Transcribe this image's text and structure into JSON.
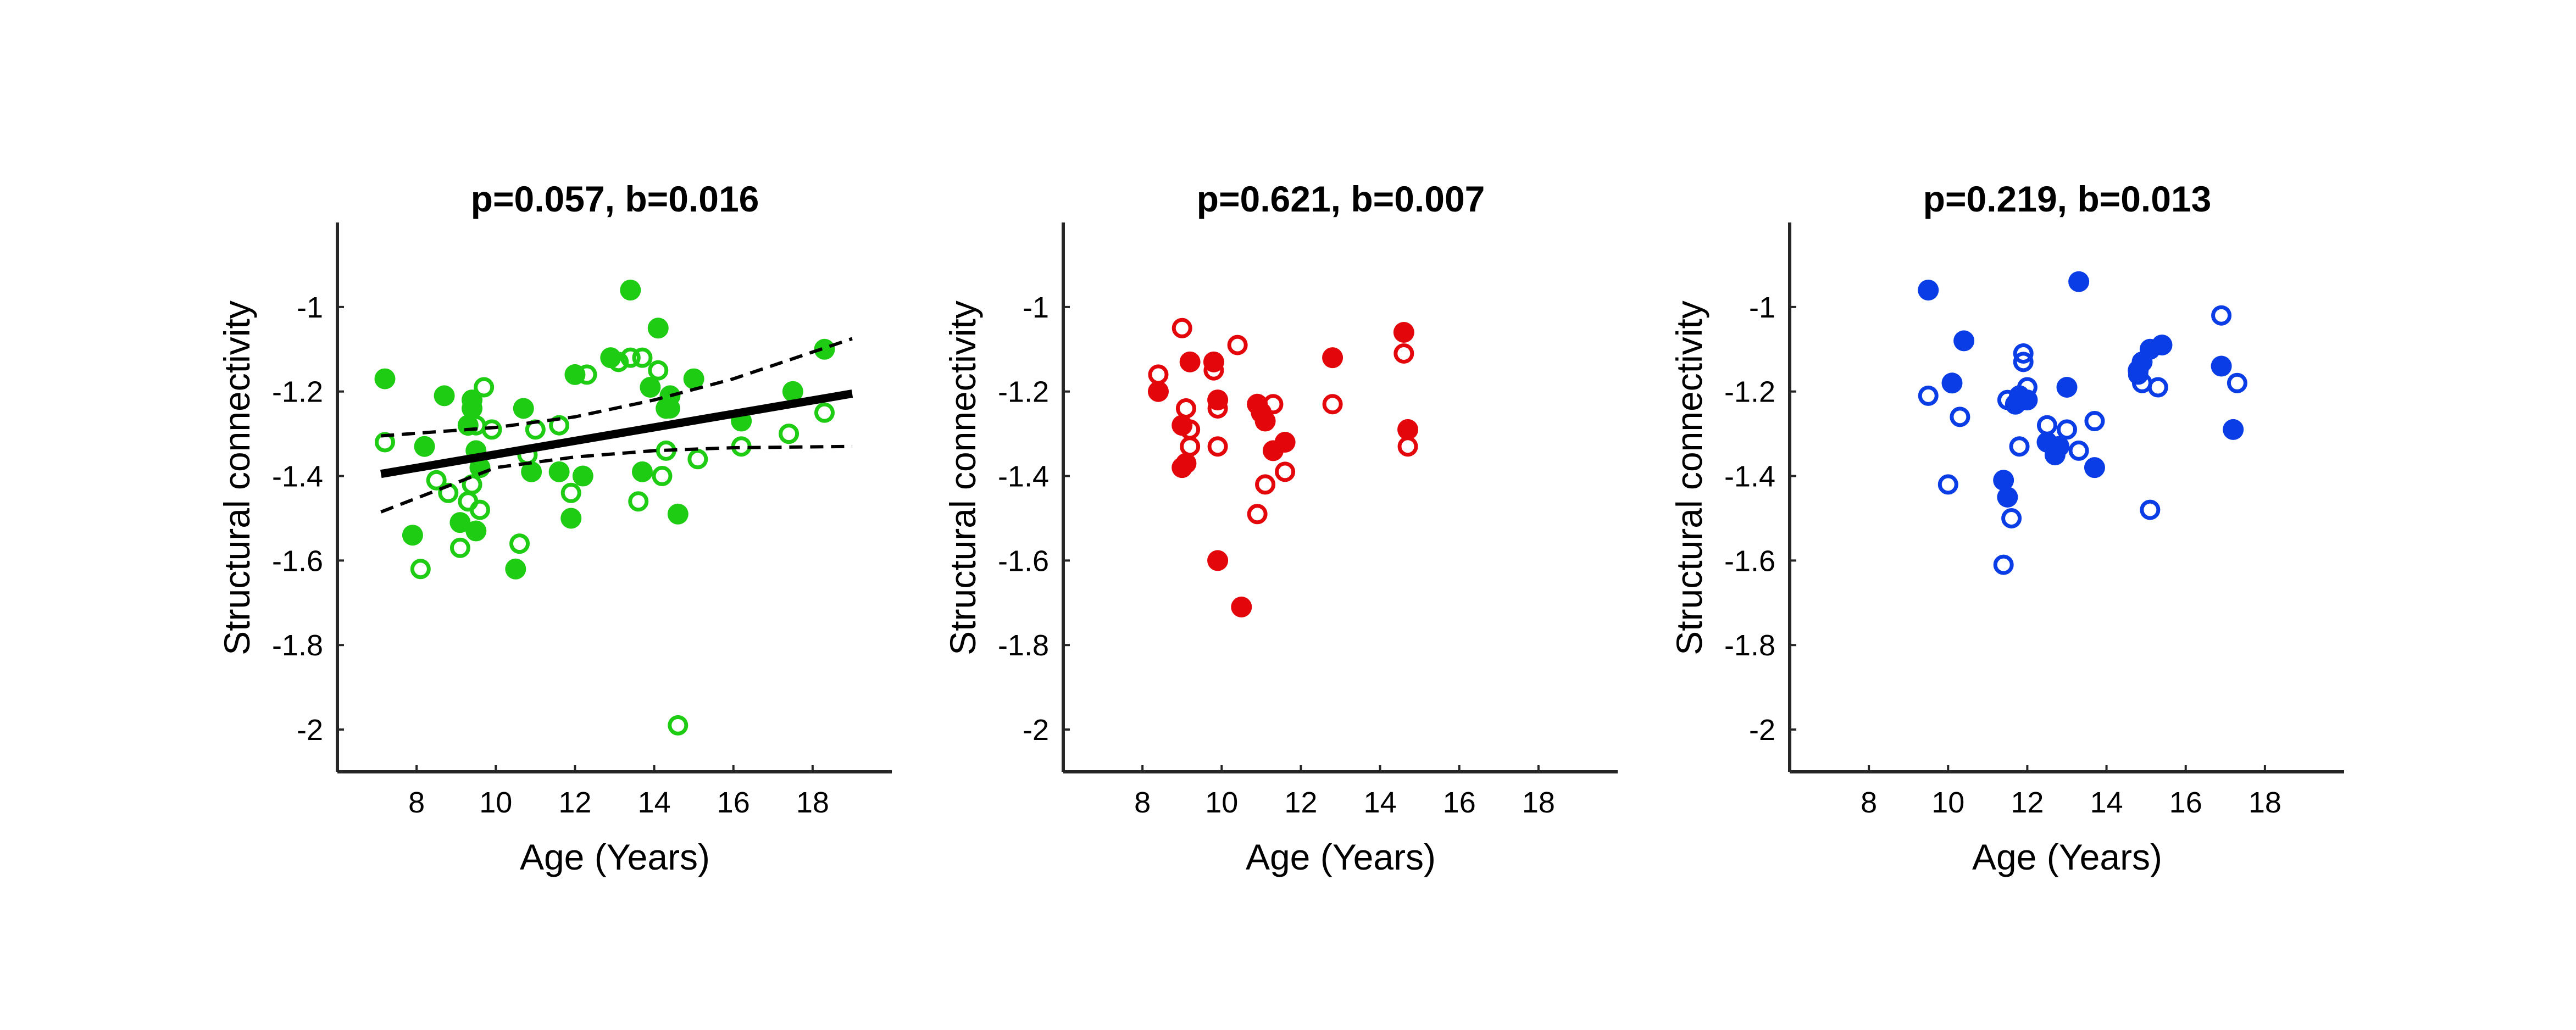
{
  "chart_data": [
    {
      "type": "scatter",
      "title": "p=0.057, b=0.016",
      "xlabel": "Age (Years)",
      "ylabel": "Structural connectivity",
      "xlim": [
        6,
        20
      ],
      "ylim": [
        -2.1,
        -0.8
      ],
      "xticks": [
        "8",
        "10",
        "12",
        "14",
        "16",
        "18"
      ],
      "yticks": [
        "-1",
        "-1.2",
        "-1.4",
        "-1.6",
        "-1.8",
        "-2"
      ],
      "color": "#1fcc14",
      "grid": false,
      "series": [
        {
          "marker": "filled",
          "points": [
            [
              7.2,
              -1.17
            ],
            [
              7.9,
              -1.54
            ],
            [
              8.2,
              -1.33
            ],
            [
              8.7,
              -1.21
            ],
            [
              9.1,
              -1.51
            ],
            [
              9.3,
              -1.28
            ],
            [
              9.4,
              -1.24
            ],
            [
              9.4,
              -1.22
            ],
            [
              9.5,
              -1.53
            ],
            [
              9.5,
              -1.34
            ],
            [
              9.6,
              -1.38
            ],
            [
              10.5,
              -1.62
            ],
            [
              10.7,
              -1.24
            ],
            [
              10.9,
              -1.39
            ],
            [
              11.6,
              -1.39
            ],
            [
              11.9,
              -1.5
            ],
            [
              12.0,
              -1.16
            ],
            [
              12.2,
              -1.4
            ],
            [
              12.9,
              -1.12
            ],
            [
              13.4,
              -0.96
            ],
            [
              13.7,
              -1.39
            ],
            [
              13.9,
              -1.19
            ],
            [
              14.1,
              -1.05
            ],
            [
              14.3,
              -1.24
            ],
            [
              14.4,
              -1.21
            ],
            [
              14.6,
              -1.49
            ],
            [
              15.0,
              -1.17
            ],
            [
              16.2,
              -1.27
            ],
            [
              17.5,
              -1.2
            ],
            [
              18.3,
              -1.1
            ]
          ]
        },
        {
          "marker": "open",
          "points": [
            [
              7.2,
              -1.32
            ],
            [
              8.1,
              -1.62
            ],
            [
              8.5,
              -1.41
            ],
            [
              8.8,
              -1.44
            ],
            [
              9.1,
              -1.57
            ],
            [
              9.3,
              -1.46
            ],
            [
              9.4,
              -1.42
            ],
            [
              9.5,
              -1.28
            ],
            [
              9.6,
              -1.48
            ],
            [
              9.7,
              -1.19
            ],
            [
              9.9,
              -1.29
            ],
            [
              10.6,
              -1.56
            ],
            [
              10.8,
              -1.35
            ],
            [
              11.0,
              -1.29
            ],
            [
              11.6,
              -1.28
            ],
            [
              11.9,
              -1.44
            ],
            [
              12.3,
              -1.16
            ],
            [
              13.1,
              -1.13
            ],
            [
              13.4,
              -1.12
            ],
            [
              13.6,
              -1.46
            ],
            [
              13.7,
              -1.12
            ],
            [
              14.1,
              -1.15
            ],
            [
              14.2,
              -1.4
            ],
            [
              14.3,
              -1.34
            ],
            [
              14.4,
              -1.24
            ],
            [
              14.6,
              -1.99
            ],
            [
              15.1,
              -1.36
            ],
            [
              16.2,
              -1.33
            ],
            [
              17.4,
              -1.3
            ],
            [
              18.3,
              -1.25
            ]
          ]
        }
      ],
      "fit": {
        "x": [
          7.1,
          19.0
        ],
        "y": [
          -1.395,
          -1.205
        ],
        "ci_lower": [
          [
            7.1,
            -1.485
          ],
          [
            10.0,
            -1.38
          ],
          [
            12.0,
            -1.355
          ],
          [
            14.0,
            -1.34
          ],
          [
            16.0,
            -1.333
          ],
          [
            19.0,
            -1.33
          ]
        ],
        "ci_upper": [
          [
            7.1,
            -1.305
          ],
          [
            10.0,
            -1.285
          ],
          [
            12.0,
            -1.26
          ],
          [
            14.0,
            -1.22
          ],
          [
            16.0,
            -1.17
          ],
          [
            19.0,
            -1.075
          ]
        ]
      }
    },
    {
      "type": "scatter",
      "title": "p=0.621, b=0.007",
      "xlabel": "Age (Years)",
      "ylabel": "Structural connectivity",
      "xlim": [
        6,
        20
      ],
      "ylim": [
        -2.1,
        -0.8
      ],
      "xticks": [
        "8",
        "10",
        "12",
        "14",
        "16",
        "18"
      ],
      "yticks": [
        "-1",
        "-1.2",
        "-1.4",
        "-1.6",
        "-1.8",
        "-2"
      ],
      "color": "#e3060b",
      "grid": false,
      "series": [
        {
          "marker": "filled",
          "points": [
            [
              8.4,
              -1.2
            ],
            [
              9.0,
              -1.38
            ],
            [
              9.0,
              -1.28
            ],
            [
              9.1,
              -1.37
            ],
            [
              9.2,
              -1.13
            ],
            [
              9.8,
              -1.13
            ],
            [
              9.9,
              -1.22
            ],
            [
              9.9,
              -1.6
            ],
            [
              10.5,
              -1.71
            ],
            [
              10.9,
              -1.23
            ],
            [
              11.0,
              -1.25
            ],
            [
              11.1,
              -1.27
            ],
            [
              11.3,
              -1.34
            ],
            [
              11.6,
              -1.32
            ],
            [
              12.8,
              -1.12
            ],
            [
              14.6,
              -1.06
            ],
            [
              14.7,
              -1.29
            ]
          ]
        },
        {
          "marker": "open",
          "points": [
            [
              8.4,
              -1.16
            ],
            [
              9.0,
              -1.05
            ],
            [
              9.1,
              -1.24
            ],
            [
              9.2,
              -1.29
            ],
            [
              9.2,
              -1.33
            ],
            [
              9.8,
              -1.15
            ],
            [
              9.9,
              -1.24
            ],
            [
              9.9,
              -1.33
            ],
            [
              10.4,
              -1.09
            ],
            [
              10.9,
              -1.49
            ],
            [
              11.1,
              -1.42
            ],
            [
              11.3,
              -1.23
            ],
            [
              11.6,
              -1.39
            ],
            [
              12.8,
              -1.23
            ],
            [
              14.6,
              -1.11
            ],
            [
              14.7,
              -1.33
            ]
          ]
        }
      ]
    },
    {
      "type": "scatter",
      "title": "p=0.219, b=0.013",
      "xlabel": "Age (Years)",
      "ylabel": "Structural connectivity",
      "xlim": [
        6,
        20
      ],
      "ylim": [
        -2.1,
        -0.8
      ],
      "xticks": [
        "8",
        "10",
        "12",
        "14",
        "16",
        "18"
      ],
      "yticks": [
        "-1",
        "-1.2",
        "-1.4",
        "-1.6",
        "-1.8",
        "-2"
      ],
      "color": "#0a3de6",
      "grid": false,
      "series": [
        {
          "marker": "filled",
          "points": [
            [
              9.5,
              -0.96
            ],
            [
              10.1,
              -1.18
            ],
            [
              10.4,
              -1.08
            ],
            [
              11.4,
              -1.41
            ],
            [
              11.5,
              -1.45
            ],
            [
              11.7,
              -1.23
            ],
            [
              11.8,
              -1.21
            ],
            [
              12.0,
              -1.22
            ],
            [
              12.5,
              -1.32
            ],
            [
              12.7,
              -1.35
            ],
            [
              12.8,
              -1.33
            ],
            [
              13.0,
              -1.19
            ],
            [
              13.3,
              -0.94
            ],
            [
              13.7,
              -1.38
            ],
            [
              14.8,
              -1.15
            ],
            [
              14.9,
              -1.13
            ],
            [
              15.1,
              -1.1
            ],
            [
              15.4,
              -1.09
            ],
            [
              16.9,
              -1.14
            ],
            [
              17.2,
              -1.29
            ]
          ]
        },
        {
          "marker": "open",
          "points": [
            [
              9.5,
              -1.21
            ],
            [
              10.0,
              -1.42
            ],
            [
              10.3,
              -1.26
            ],
            [
              11.4,
              -1.61
            ],
            [
              11.5,
              -1.22
            ],
            [
              11.6,
              -1.5
            ],
            [
              11.8,
              -1.33
            ],
            [
              11.9,
              -1.11
            ],
            [
              11.9,
              -1.13
            ],
            [
              12.0,
              -1.19
            ],
            [
              12.5,
              -1.28
            ],
            [
              13.0,
              -1.29
            ],
            [
              13.3,
              -1.34
            ],
            [
              13.7,
              -1.27
            ],
            [
              14.8,
              -1.16
            ],
            [
              14.9,
              -1.18
            ],
            [
              15.1,
              -1.48
            ],
            [
              15.3,
              -1.19
            ],
            [
              16.9,
              -1.02
            ],
            [
              17.3,
              -1.18
            ]
          ]
        }
      ]
    }
  ]
}
